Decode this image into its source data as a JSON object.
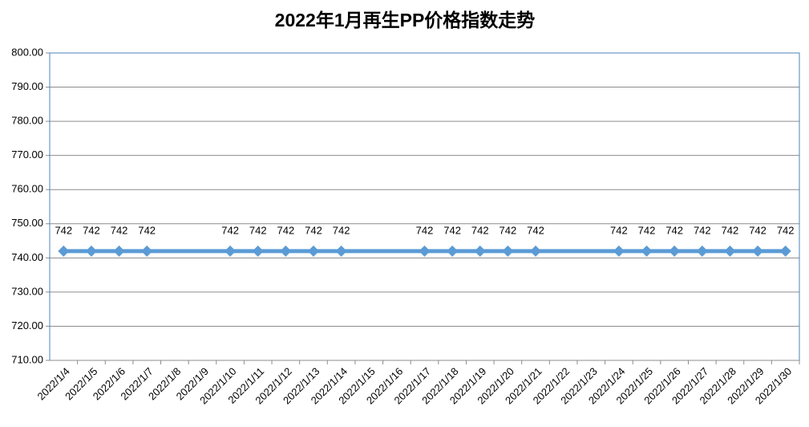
{
  "chart_data": {
    "type": "line",
    "title": "2022年1月再生PP价格指数走势",
    "xticks": [
      "2022/1/4",
      "2022/1/5",
      "2022/1/6",
      "2022/1/7",
      "2022/1/8",
      "2022/1/9",
      "2022/1/10",
      "2022/1/11",
      "2022/1/12",
      "2022/1/13",
      "2022/1/14",
      "2022/1/15",
      "2022/1/16",
      "2022/1/17",
      "2022/1/18",
      "2022/1/19",
      "2022/1/20",
      "2022/1/21",
      "2022/1/22",
      "2022/1/23",
      "2022/1/24",
      "2022/1/25",
      "2022/1/26",
      "2022/1/27",
      "2022/1/28",
      "2022/1/29",
      "2022/1/30"
    ],
    "x": [
      "2022/1/4",
      "2022/1/5",
      "2022/1/6",
      "2022/1/7",
      "2022/1/10",
      "2022/1/11",
      "2022/1/12",
      "2022/1/13",
      "2022/1/14",
      "2022/1/17",
      "2022/1/18",
      "2022/1/19",
      "2022/1/20",
      "2022/1/21",
      "2022/1/24",
      "2022/1/25",
      "2022/1/26",
      "2022/1/27",
      "2022/1/28",
      "2022/1/29",
      "2022/1/30"
    ],
    "series": [
      {
        "color": "#5b9bd5",
        "values": [
          742,
          742,
          742,
          742,
          742,
          742,
          742,
          742,
          742,
          742,
          742,
          742,
          742,
          742,
          742,
          742,
          742,
          742,
          742,
          742,
          742
        ]
      }
    ],
    "ylim": [
      710,
      800
    ],
    "yticks": [
      {
        "value": 710,
        "label": "710.00"
      },
      {
        "value": 720,
        "label": "720.00"
      },
      {
        "value": 730,
        "label": "730.00"
      },
      {
        "value": 740,
        "label": "740.00"
      },
      {
        "value": 750,
        "label": "750.00"
      },
      {
        "value": 760,
        "label": "760.00"
      },
      {
        "value": 770,
        "label": "770.00"
      },
      {
        "value": 780,
        "label": "780.00"
      },
      {
        "value": 790,
        "label": "790.00"
      },
      {
        "value": 800,
        "label": "800.00"
      }
    ],
    "grid": true
  }
}
